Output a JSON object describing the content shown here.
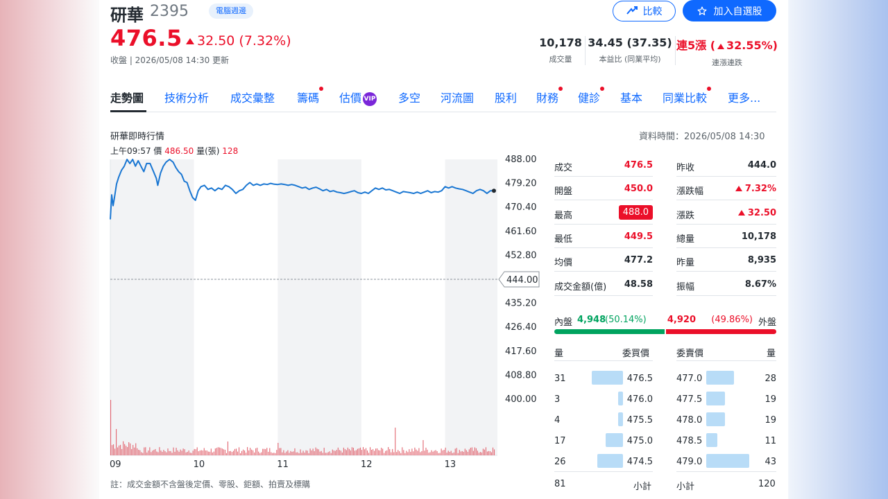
{
  "header": {
    "name": "研華",
    "code": "2395",
    "sector": "電腦週邊",
    "compare_label": "比較",
    "watchlist_label": "加入自選股",
    "price": "476.5",
    "change": "32.50 (7.32%)",
    "status": "收盤 | 2026/05/08 14:30 更新",
    "stats": [
      {
        "value": "10,178",
        "label": "成交量"
      },
      {
        "value": "34.45 (37.35)",
        "label": "本益比 (同業平均)"
      },
      {
        "value_a": "連5漲 (",
        "value_b": "32.55%)",
        "label": "連漲連跌"
      }
    ]
  },
  "tabs": [
    {
      "label": "走勢圖",
      "active": true,
      "dot": false
    },
    {
      "label": "技術分析",
      "active": false,
      "dot": false
    },
    {
      "label": "成交彙整",
      "active": false,
      "dot": false
    },
    {
      "label": "籌碼",
      "active": false,
      "dot": true
    },
    {
      "label": "估價",
      "active": false,
      "dot": false,
      "vip": "VIP"
    },
    {
      "label": "多空",
      "active": false,
      "dot": false
    },
    {
      "label": "河流圖",
      "active": false,
      "dot": false
    },
    {
      "label": "股利",
      "active": false,
      "dot": false
    },
    {
      "label": "財務",
      "active": false,
      "dot": true
    },
    {
      "label": "健診",
      "active": false,
      "dot": true
    },
    {
      "label": "基本",
      "active": false,
      "dot": false
    },
    {
      "label": "同業比較",
      "active": false,
      "dot": true
    },
    {
      "label": "更多...",
      "active": false,
      "dot": false
    }
  ],
  "chart": {
    "title": "研華即時行情",
    "data_time": "資料時間：2026/05/08 14:30",
    "crosshair": {
      "time": "上午09:57",
      "price_label": "價",
      "price": "486.50",
      "volume_label": "量(張)",
      "volume": "128"
    },
    "footnote": "註：成交金額不含盤後定價、零股、鉅額、拍賣及標購"
  },
  "chart_data": {
    "type": "line",
    "title": "研華即時行情",
    "x_ticks": [
      "09",
      "10",
      "11",
      "12",
      "13"
    ],
    "y_ticks": [
      "488.00",
      "479.20",
      "470.40",
      "461.60",
      "452.80",
      "444.00",
      "435.20",
      "426.40",
      "417.60",
      "408.80",
      "400.00"
    ],
    "ylim": [
      400.0,
      488.0
    ],
    "reference_price": 444.0,
    "reference_label": "444.00",
    "x_unit": "minutes since 09:00",
    "price_series": [
      [
        0,
        466.0
      ],
      [
        2,
        475.0
      ],
      [
        4,
        471.0
      ],
      [
        6,
        474.0
      ],
      [
        9,
        479.0
      ],
      [
        12,
        481.5
      ],
      [
        16,
        484.0
      ],
      [
        20,
        485.5
      ],
      [
        24,
        488.0
      ],
      [
        28,
        486.5
      ],
      [
        32,
        488.0
      ],
      [
        36,
        485.5
      ],
      [
        40,
        487.5
      ],
      [
        45,
        485.0
      ],
      [
        48,
        483.5
      ],
      [
        52,
        486.5
      ],
      [
        57,
        486.5
      ],
      [
        62,
        483.5
      ],
      [
        66,
        481.0
      ],
      [
        68,
        478.5
      ],
      [
        72,
        483.0
      ],
      [
        76,
        485.5
      ],
      [
        80,
        487.0
      ],
      [
        85,
        488.0
      ],
      [
        90,
        487.0
      ],
      [
        94,
        485.0
      ],
      [
        98,
        483.5
      ],
      [
        102,
        482.5
      ],
      [
        106,
        480.0
      ],
      [
        110,
        479.5
      ],
      [
        114,
        476.5
      ],
      [
        118,
        474.0
      ],
      [
        122,
        473.0
      ],
      [
        126,
        476.5
      ],
      [
        130,
        478.0
      ],
      [
        135,
        478.5
      ],
      [
        140,
        477.0
      ],
      [
        145,
        477.5
      ],
      [
        150,
        476.5
      ],
      [
        155,
        477.5
      ],
      [
        160,
        477.0
      ],
      [
        165,
        478.5
      ],
      [
        170,
        478.0
      ],
      [
        175,
        477.0
      ],
      [
        180,
        475.5
      ],
      [
        185,
        476.5
      ],
      [
        190,
        477.0
      ],
      [
        195,
        478.5
      ],
      [
        200,
        479.5
      ],
      [
        205,
        478.5
      ],
      [
        210,
        479.0
      ],
      [
        215,
        478.5
      ],
      [
        220,
        479.0
      ],
      [
        225,
        478.8
      ],
      [
        230,
        479.2
      ],
      [
        235,
        478.9
      ],
      [
        240,
        478.8
      ],
      [
        245,
        479.0
      ],
      [
        250,
        478.8
      ],
      [
        255,
        478.5
      ],
      [
        260,
        478.8
      ],
      [
        265,
        478.5
      ],
      [
        270,
        478.0
      ],
      [
        275,
        477.5
      ],
      [
        280,
        477.8
      ],
      [
        285,
        477.0
      ],
      [
        290,
        477.5
      ],
      [
        295,
        477.8
      ],
      [
        300,
        477.2
      ],
      [
        305,
        476.5
      ],
      [
        310,
        477.0
      ],
      [
        315,
        476.2
      ],
      [
        320,
        476.5
      ],
      [
        325,
        476.0
      ],
      [
        330,
        475.8
      ],
      [
        335,
        475.5
      ],
      [
        340,
        475.8
      ],
      [
        345,
        476.2
      ],
      [
        350,
        476.5
      ],
      [
        355,
        475.8
      ],
      [
        360,
        475.5
      ],
      [
        365,
        476.0
      ],
      [
        370,
        475.5
      ],
      [
        375,
        476.5
      ],
      [
        380,
        477.5
      ],
      [
        385,
        477.0
      ],
      [
        390,
        477.5
      ],
      [
        395,
        476.8
      ],
      [
        400,
        477.0
      ],
      [
        405,
        476.5
      ],
      [
        410,
        476.0
      ],
      [
        415,
        475.5
      ],
      [
        420,
        476.2
      ],
      [
        425,
        476.0
      ],
      [
        430,
        475.8
      ],
      [
        435,
        475.5
      ],
      [
        440,
        476.0
      ],
      [
        445,
        475.5
      ],
      [
        450,
        476.0
      ],
      [
        455,
        476.5
      ],
      [
        460,
        475.8
      ],
      [
        465,
        476.2
      ],
      [
        470,
        476.0
      ],
      [
        475,
        476.5
      ],
      [
        480,
        478.0
      ],
      [
        485,
        477.5
      ],
      [
        490,
        478.0
      ],
      [
        495,
        477.5
      ],
      [
        500,
        477.2
      ],
      [
        505,
        477.0
      ],
      [
        510,
        476.5
      ],
      [
        515,
        476.0
      ],
      [
        520,
        475.5
      ],
      [
        525,
        476.5
      ],
      [
        530,
        477.0
      ],
      [
        535,
        476.5
      ],
      [
        540,
        475.5
      ],
      [
        545,
        476.5
      ],
      [
        550,
        476.5
      ]
    ],
    "volume_peak_indices": [
      [
        0,
        80
      ],
      [
        3,
        45
      ],
      [
        8,
        38
      ],
      [
        65,
        30
      ],
      [
        131,
        24
      ],
      [
        168,
        20
      ],
      [
        240,
        18
      ],
      [
        365,
        28
      ],
      [
        408,
        40
      ],
      [
        448,
        22
      ],
      [
        545,
        48
      ]
    ]
  },
  "stats_left": [
    {
      "k": "成交",
      "v": "476.5",
      "style": "red"
    },
    {
      "k": "開盤",
      "v": "450.0",
      "style": "red"
    },
    {
      "k": "最高",
      "v": "488.0",
      "style": "box"
    },
    {
      "k": "最低",
      "v": "449.5",
      "style": "red"
    },
    {
      "k": "均價",
      "v": "477.2",
      "style": ""
    },
    {
      "k": "成交金額(億)",
      "v": "48.58",
      "style": ""
    }
  ],
  "stats_right": [
    {
      "k": "昨收",
      "v": "444.0",
      "style": ""
    },
    {
      "k": "漲跌幅",
      "v": "7.32%",
      "style": "red",
      "arrow": true
    },
    {
      "k": "漲跌",
      "v": "32.50",
      "style": "red",
      "arrow": true
    },
    {
      "k": "總量",
      "v": "10,178",
      "style": ""
    },
    {
      "k": "昨量",
      "v": "8,935",
      "style": ""
    },
    {
      "k": "振幅",
      "v": "8.67%",
      "style": ""
    }
  ],
  "inout": {
    "in_label": "內盤",
    "in_value": "4,948",
    "in_pct": "(50.14%)",
    "out_value": "4,920",
    "out_pct": "(49.86%)",
    "out_label": "外盤",
    "in_ratio": 0.5014
  },
  "order_book": {
    "bid_headers": {
      "qty": "量",
      "price": "委買價"
    },
    "ask_headers": {
      "price": "委賣價",
      "qty": "量"
    },
    "bids": [
      {
        "qty": "31",
        "price": "476.5",
        "n": 31
      },
      {
        "qty": "3",
        "price": "476.0",
        "n": 3
      },
      {
        "qty": "4",
        "price": "475.5",
        "n": 4
      },
      {
        "qty": "17",
        "price": "475.0",
        "n": 17
      },
      {
        "qty": "26",
        "price": "474.5",
        "n": 26
      }
    ],
    "asks": [
      {
        "price": "477.0",
        "qty": "28",
        "n": 28
      },
      {
        "price": "477.5",
        "qty": "19",
        "n": 19
      },
      {
        "price": "478.0",
        "qty": "19",
        "n": 19
      },
      {
        "price": "478.5",
        "qty": "11",
        "n": 11
      },
      {
        "price": "479.0",
        "qty": "43",
        "n": 43
      }
    ],
    "bid_total": "81",
    "bid_total_label": "小計",
    "ask_total_label": "小計",
    "ask_total": "120"
  }
}
